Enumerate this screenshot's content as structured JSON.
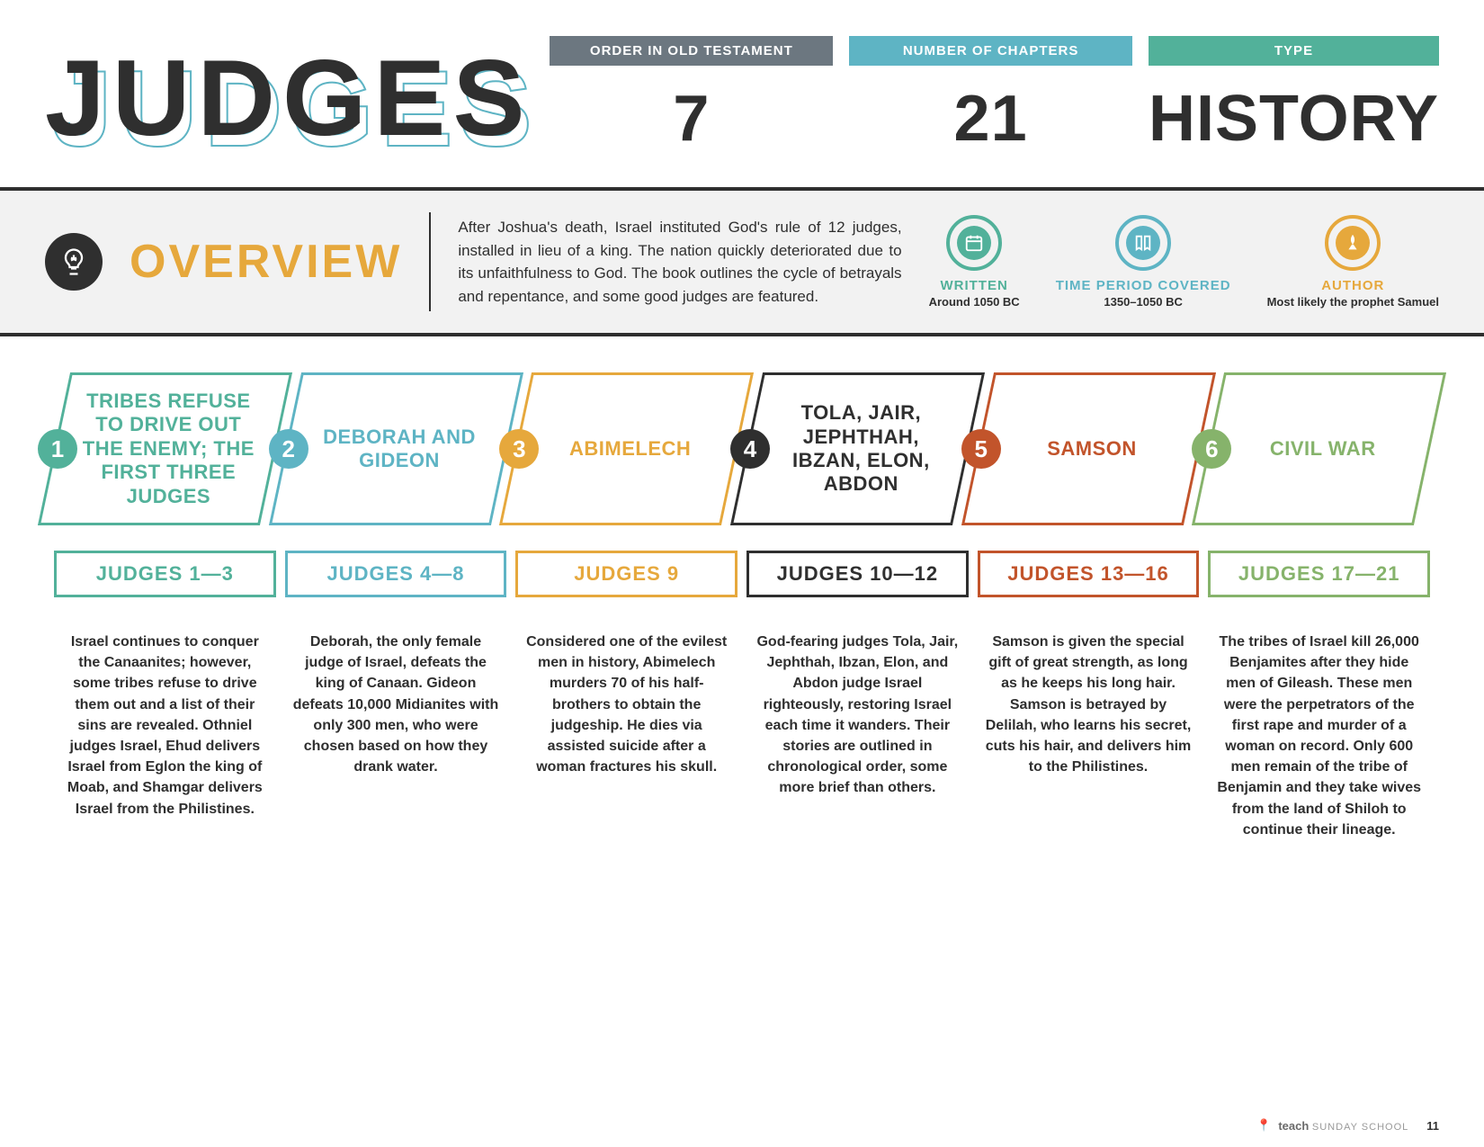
{
  "title": "JUDGES",
  "stats": [
    {
      "label": "ORDER IN OLD TESTAMENT",
      "value": "7",
      "bg": "#6c7780"
    },
    {
      "label": "NUMBER OF CHAPTERS",
      "value": "21",
      "bg": "#5eb4c4"
    },
    {
      "label": "TYPE",
      "value": "HISTORY",
      "bg": "#52b19a"
    }
  ],
  "overview": {
    "heading": "OVERVIEW",
    "text": "After Joshua's death, Israel instituted God's rule of 12 judges, installed in lieu of a king. The nation quickly deteriorated due to its unfaithfulness to God. The book outlines the cycle of betrayals and repentance, and some good judges are featured.",
    "meta": [
      {
        "label": "WRITTEN",
        "value": "Around 1050 BC",
        "color": "#52b19a"
      },
      {
        "label": "TIME PERIOD COVERED",
        "value": "1350–1050 BC",
        "color": "#5eb4c4"
      },
      {
        "label": "AUTHOR",
        "value": "Most likely the prophet Samuel",
        "color": "#e6a83c"
      }
    ]
  },
  "sections": [
    {
      "num": "1",
      "color": "#52b19a",
      "title": "TRIBES REFUSE TO DRIVE OUT THE ENEMY; THE FIRST THREE JUDGES",
      "range": "JUDGES 1—3",
      "desc": "Israel continues to conquer the Canaanites; however, some tribes refuse to drive them out and a list of their sins are revealed. Othniel judges Israel, Ehud delivers Israel from Eglon the king of Moab, and Shamgar delivers Israel from the Philistines."
    },
    {
      "num": "2",
      "color": "#5eb4c4",
      "title": "DEBORAH AND GIDEON",
      "range": "JUDGES 4—8",
      "desc": "Deborah, the only female judge of Israel, defeats the king of Canaan. Gideon defeats 10,000 Midianites with only 300 men, who were chosen based on how they drank water."
    },
    {
      "num": "3",
      "color": "#e6a83c",
      "title": "ABIMELECH",
      "range": "JUDGES 9",
      "desc": "Considered one of the evilest men in history, Abimelech murders 70 of his half-brothers to obtain the judgeship. He dies via assisted suicide after a woman fractures his skull."
    },
    {
      "num": "4",
      "color": "#2f2f2f",
      "title": "TOLA, JAIR, JEPHTHAH, IBZAN, ELON, ABDON",
      "range": "JUDGES 10—12",
      "desc": "God-fearing judges Tola, Jair, Jephthah, Ibzan, Elon, and Abdon judge Israel righteously, restoring Israel each time it wanders. Their stories are outlined in chronological order, some more brief than others."
    },
    {
      "num": "5",
      "color": "#c2542b",
      "title": "SAMSON",
      "range": "JUDGES 13—16",
      "desc": "Samson is given the special gift of great strength, as long as he keeps his long hair. Samson is betrayed by Delilah, who learns his secret, cuts his hair, and delivers him to the Philistines."
    },
    {
      "num": "6",
      "color": "#86b36b",
      "title": "CIVIL WAR",
      "range": "JUDGES 17—21",
      "desc": "The tribes of Israel kill 26,000 Benjamites after they hide men of Gileash. These men were the perpetrators of the first rape and murder of a woman on record. Only 600 men remain of the tribe of Benjamin and they take wives from the land of Shiloh to continue their lineage."
    }
  ],
  "footer": {
    "brand_bold": "teach",
    "brand_light": "SUNDAY SCHOOL",
    "page": "11"
  }
}
